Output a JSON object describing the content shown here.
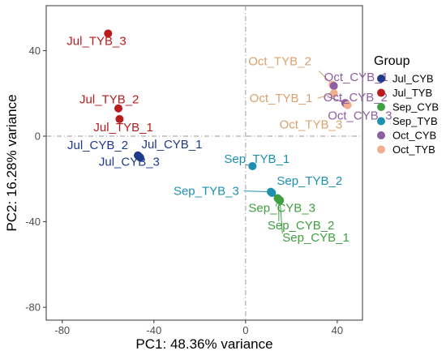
{
  "chart_data": {
    "type": "scatter",
    "xlabel": "PC1: 48.36% variance",
    "ylabel": "PC2: 16.28% variance",
    "xlim": [
      -87,
      51
    ],
    "ylim": [
      -86,
      61
    ],
    "x_ticks": [
      -80,
      -40,
      0,
      40
    ],
    "y_ticks": [
      -80,
      -40,
      0,
      40
    ],
    "tick_labels_x": [
      "-80",
      "-40",
      "0",
      "40"
    ],
    "tick_labels_y": [
      "-80",
      "-40",
      "0",
      "40"
    ],
    "reference_lines": {
      "x": 0,
      "y": 0
    },
    "grid": false,
    "legend": {
      "title": "Group",
      "placement": "right",
      "entries": [
        {
          "name": "Jul_CYB",
          "color": "#1f3a8a"
        },
        {
          "name": "Jul_TYB",
          "color": "#b91c1c"
        },
        {
          "name": "Sep_CYB",
          "color": "#3ea040"
        },
        {
          "name": "Sep_TYB",
          "color": "#1f8fb0"
        },
        {
          "name": "Oct_CYB",
          "color": "#8e5ea2"
        },
        {
          "name": "Oct_TYB",
          "color": "#f0b090"
        }
      ]
    },
    "points": [
      {
        "group": "Jul_TYB",
        "label": "Jul_TYB_3",
        "x": -60,
        "y": 48,
        "color": "#b91c1c",
        "label_color": "#b91c1c"
      },
      {
        "group": "Jul_TYB",
        "label": "Jul_TYB_2",
        "x": -55.5,
        "y": 13,
        "color": "#b91c1c",
        "label_color": "#b91c1c"
      },
      {
        "group": "Jul_TYB",
        "label": "Jul_TYB_1",
        "x": -55,
        "y": 8,
        "color": "#b91c1c",
        "label_color": "#b91c1c"
      },
      {
        "group": "Jul_CYB",
        "label": "Jul_CYB_2",
        "x": -47,
        "y": -9,
        "color": "#1f3a8a",
        "label_color": "#1f3a8a"
      },
      {
        "group": "Jul_CYB",
        "label": "Jul_CYB_1",
        "x": -46.5,
        "y": -9.5,
        "color": "#1f3a8a",
        "label_color": "#1f3a8a"
      },
      {
        "group": "Jul_CYB",
        "label": "Jul_CYB_3",
        "x": -46,
        "y": -10,
        "color": "#1f3a8a",
        "label_color": "#1f3a8a"
      },
      {
        "group": "Sep_TYB",
        "label": "Sep_TYB_1",
        "x": 3,
        "y": -14,
        "color": "#1f8fb0",
        "label_color": "#1f8fb0"
      },
      {
        "group": "Sep_TYB",
        "label": "Sep_TYB_3",
        "x": 11,
        "y": -26,
        "color": "#1f8fb0",
        "label_color": "#1f8fb0"
      },
      {
        "group": "Sep_TYB",
        "label": "Sep_TYB_2",
        "x": 11.5,
        "y": -26.5,
        "color": "#1f8fb0",
        "label_color": "#1f8fb0"
      },
      {
        "group": "Sep_CYB",
        "label": "Sep_CYB_3",
        "x": 14,
        "y": -29,
        "color": "#3ea040",
        "label_color": "#3ea040"
      },
      {
        "group": "Sep_CYB",
        "label": "Sep_CYB_2",
        "x": 14.5,
        "y": -29.5,
        "color": "#3ea040",
        "label_color": "#3ea040"
      },
      {
        "group": "Sep_CYB",
        "label": "Sep_CYB_1",
        "x": 15,
        "y": -30,
        "color": "#3ea040",
        "label_color": "#3ea040"
      },
      {
        "group": "Oct_TYB",
        "label": "Oct_TYB_2",
        "x": 38,
        "y": 24,
        "color": "#f0b090",
        "label_color": "#d9a26f"
      },
      {
        "group": "Oct_CYB",
        "label": "Oct_CYB_1",
        "x": 38.5,
        "y": 23.5,
        "color": "#8e5ea2",
        "label_color": "#8e5ea2"
      },
      {
        "group": "Oct_TYB",
        "label": "Oct_TYB_1",
        "x": 38.5,
        "y": 20,
        "color": "#f0b090",
        "label_color": "#d9a26f"
      },
      {
        "group": "Oct_CYB",
        "label": "Oct_CYB_2",
        "x": 43.5,
        "y": 15.5,
        "color": "#8e5ea2",
        "label_color": "#8e5ea2"
      },
      {
        "group": "Oct_CYB",
        "label": "Oct_CYB_3",
        "x": 44,
        "y": 15,
        "color": "#8e5ea2",
        "label_color": "#8e5ea2"
      },
      {
        "group": "Oct_TYB",
        "label": "Oct_TYB_3",
        "x": 44.5,
        "y": 14.5,
        "color": "#f0b090",
        "label_color": "#d9a26f"
      }
    ]
  }
}
